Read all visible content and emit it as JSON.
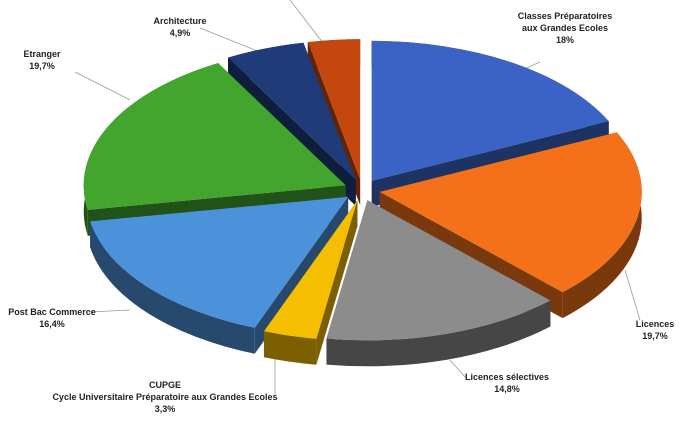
{
  "chart_data": {
    "type": "pie3d",
    "categories": [
      "Classes Préparatoires\naux Grandes Ecoles",
      "Licences",
      "Licences sélectives",
      "CUPGE\nCycle Universitaire Préparatoire aux Grandes Ecoles",
      "Post Bac Commerce",
      "Etranger",
      "Architecture",
      null
    ],
    "values": [
      18,
      19.7,
      14.8,
      3.3,
      16.4,
      19.7,
      4.9,
      3.2
    ],
    "value_labels": [
      "18%",
      "19,7%",
      "14,8%",
      "3,3%",
      "16,4%",
      "19,7%",
      "4,9%",
      null
    ],
    "colors": [
      "#3b63c6",
      "#f4711a",
      "#8c8c8c",
      "#f6be00",
      "#4b92da",
      "#42a52e",
      "#1f3b7a",
      "#c4470f"
    ]
  }
}
